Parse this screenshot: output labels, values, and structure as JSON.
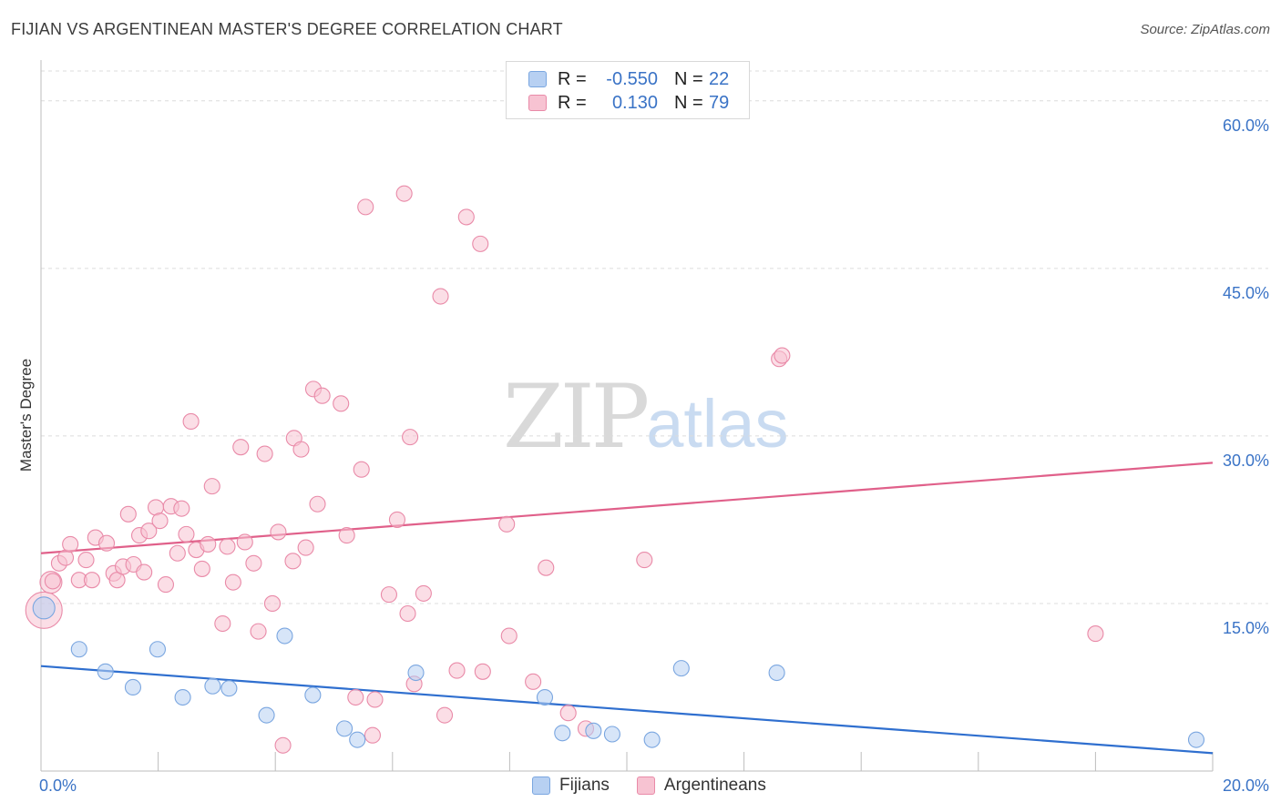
{
  "header": {
    "title": "FIJIAN VS ARGENTINEAN MASTER'S DEGREE CORRELATION CHART",
    "source": "Source: ZipAtlas.com"
  },
  "watermark": {
    "zip": "ZIP",
    "atlas": "atlas"
  },
  "legend": {
    "rows": [
      {
        "r_label": "R =",
        "r_value": "-0.550",
        "n_label": "N =",
        "n_value": "22"
      },
      {
        "r_label": "R =",
        "r_value": "0.130",
        "n_label": "N =",
        "n_value": "79"
      }
    ]
  },
  "bottom_legend": {
    "fijians": "Fijians",
    "argentineans": "Argentineans"
  },
  "colors": {
    "fijian_fill": "#b7d0f2",
    "fijian_stroke": "#7aa6e0",
    "fijian_line": "#2f6fcf",
    "argentinean_fill": "#f7c3d2",
    "argentinean_stroke": "#e98aa8",
    "argentinean_line": "#e0608a",
    "tick": "#3a73c6",
    "grid": "#dcdcdc"
  },
  "chart_data": {
    "type": "scatter",
    "title": "FIJIAN VS ARGENTINEAN MASTER'S DEGREE CORRELATION CHART",
    "xlabel": "",
    "ylabel": "Master's Degree",
    "xlim": [
      0,
      20
    ],
    "ylim": [
      0,
      63
    ],
    "x_tick_labels": [
      {
        "value": 0,
        "label": "0.0%"
      },
      {
        "value": 20,
        "label": "20.0%"
      }
    ],
    "y_tick_labels": [
      {
        "value": 15,
        "label": "15.0%"
      },
      {
        "value": 30,
        "label": "30.0%"
      },
      {
        "value": 45,
        "label": "45.0%"
      },
      {
        "value": 60,
        "label": "60.0%"
      }
    ],
    "series": [
      {
        "name": "Fijians",
        "points": [
          [
            0.05,
            14.6
          ],
          [
            0.65,
            10.9
          ],
          [
            1.1,
            8.9
          ],
          [
            1.57,
            7.5
          ],
          [
            1.99,
            10.9
          ],
          [
            2.42,
            6.6
          ],
          [
            2.93,
            7.6
          ],
          [
            3.21,
            7.4
          ],
          [
            3.85,
            5.0
          ],
          [
            4.16,
            12.1
          ],
          [
            4.64,
            6.8
          ],
          [
            5.18,
            3.8
          ],
          [
            5.4,
            2.8
          ],
          [
            6.4,
            8.8
          ],
          [
            8.6,
            6.6
          ],
          [
            8.9,
            3.4
          ],
          [
            9.43,
            3.6
          ],
          [
            9.75,
            3.3
          ],
          [
            10.43,
            2.8
          ],
          [
            10.93,
            9.2
          ],
          [
            12.56,
            8.8
          ],
          [
            19.72,
            2.8
          ]
        ],
        "trend": [
          [
            0,
            9.4
          ],
          [
            20,
            1.6
          ]
        ]
      },
      {
        "name": "Argentineans",
        "points": [
          [
            0.05,
            14.4
          ],
          [
            0.17,
            16.9
          ],
          [
            0.31,
            18.6
          ],
          [
            0.42,
            19.1
          ],
          [
            0.5,
            20.3
          ],
          [
            0.65,
            17.1
          ],
          [
            0.77,
            18.9
          ],
          [
            0.87,
            17.1
          ],
          [
            0.93,
            20.9
          ],
          [
            1.12,
            20.4
          ],
          [
            1.24,
            17.7
          ],
          [
            1.3,
            17.1
          ],
          [
            1.4,
            18.3
          ],
          [
            1.49,
            23.0
          ],
          [
            1.58,
            18.5
          ],
          [
            1.68,
            21.1
          ],
          [
            1.76,
            17.8
          ],
          [
            1.84,
            21.5
          ],
          [
            1.96,
            23.6
          ],
          [
            2.03,
            22.4
          ],
          [
            2.13,
            16.7
          ],
          [
            2.22,
            23.7
          ],
          [
            2.33,
            19.5
          ],
          [
            2.4,
            23.5
          ],
          [
            2.48,
            21.2
          ],
          [
            2.56,
            31.3
          ],
          [
            2.65,
            19.8
          ],
          [
            2.75,
            18.1
          ],
          [
            2.85,
            20.3
          ],
          [
            2.92,
            25.5
          ],
          [
            3.1,
            13.2
          ],
          [
            3.18,
            20.1
          ],
          [
            3.28,
            16.9
          ],
          [
            3.41,
            29.0
          ],
          [
            3.48,
            20.5
          ],
          [
            3.63,
            18.6
          ],
          [
            3.71,
            12.5
          ],
          [
            3.82,
            28.4
          ],
          [
            3.95,
            15.0
          ],
          [
            4.05,
            21.4
          ],
          [
            4.13,
            2.3
          ],
          [
            4.3,
            18.8
          ],
          [
            4.32,
            29.8
          ],
          [
            4.44,
            28.8
          ],
          [
            4.52,
            20.0
          ],
          [
            4.65,
            34.2
          ],
          [
            4.72,
            23.9
          ],
          [
            4.8,
            33.6
          ],
          [
            5.12,
            32.9
          ],
          [
            5.22,
            21.1
          ],
          [
            5.37,
            6.6
          ],
          [
            5.47,
            27.0
          ],
          [
            5.54,
            50.5
          ],
          [
            5.66,
            3.2
          ],
          [
            5.7,
            6.4
          ],
          [
            5.94,
            15.8
          ],
          [
            6.08,
            22.5
          ],
          [
            6.2,
            51.7
          ],
          [
            6.26,
            14.1
          ],
          [
            6.3,
            29.9
          ],
          [
            6.37,
            7.8
          ],
          [
            6.53,
            15.9
          ],
          [
            6.82,
            42.5
          ],
          [
            6.89,
            5.0
          ],
          [
            7.1,
            9.0
          ],
          [
            7.26,
            49.6
          ],
          [
            7.5,
            47.2
          ],
          [
            7.54,
            8.9
          ],
          [
            7.95,
            22.1
          ],
          [
            7.99,
            12.1
          ],
          [
            8.4,
            8.0
          ],
          [
            8.62,
            18.2
          ],
          [
            9.0,
            5.2
          ],
          [
            9.3,
            3.8
          ],
          [
            10.3,
            18.9
          ],
          [
            12.6,
            36.9
          ],
          [
            12.65,
            37.2
          ],
          [
            18.0,
            12.3
          ],
          [
            0.2,
            17.0
          ]
        ],
        "trend": [
          [
            0,
            19.5
          ],
          [
            20,
            27.6
          ]
        ]
      }
    ]
  }
}
